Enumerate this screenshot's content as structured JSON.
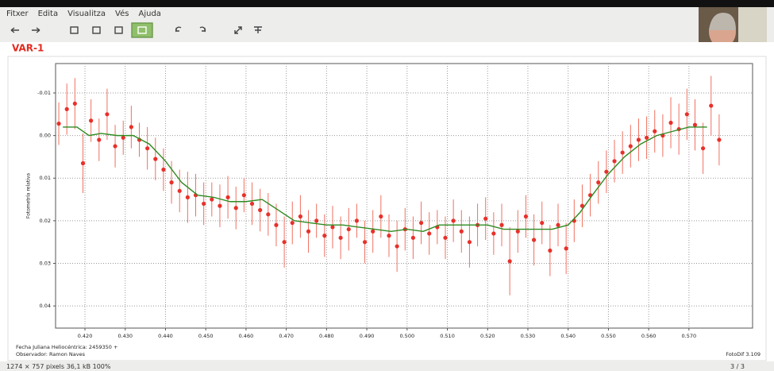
{
  "menu": [
    "Fitxer",
    "Edita",
    "Visualitza",
    "Vés",
    "Ajuda"
  ],
  "status": {
    "info": "1274 × 757 pixels  36,1 kB  100%",
    "page": "3 / 3"
  },
  "chart_data": {
    "type": "scatter",
    "title": "VAR-1",
    "xlabel": "Fecha Juliana Heliocéntrica: 2459350 +",
    "ylabel": "Fotometría relativa",
    "annotations": [
      "Observador: Ramon Naves",
      "FotoDif 3.109"
    ],
    "xlim": [
      0.4127,
      0.5858
    ],
    "ylim": [
      0.0452,
      -0.0169
    ],
    "grid": true,
    "xticks": [
      {
        "value": 0.42,
        "label": "0.420"
      },
      {
        "value": 0.43,
        "label": "0.430"
      },
      {
        "value": 0.44,
        "label": "0.440"
      },
      {
        "value": 0.45,
        "label": "0.450"
      },
      {
        "value": 0.46,
        "label": "0.460"
      },
      {
        "value": 0.47,
        "label": "0.470"
      },
      {
        "value": 0.48,
        "label": "0.480"
      },
      {
        "value": 0.49,
        "label": "0.490"
      },
      {
        "value": 0.5,
        "label": "0.500"
      },
      {
        "value": 0.51,
        "label": "0.510"
      },
      {
        "value": 0.52,
        "label": "0.520"
      },
      {
        "value": 0.53,
        "label": "0.530"
      },
      {
        "value": 0.54,
        "label": "0.540"
      },
      {
        "value": 0.55,
        "label": "0.550"
      },
      {
        "value": 0.56,
        "label": "0.560"
      },
      {
        "value": 0.57,
        "label": "0.570"
      }
    ],
    "yticks": [
      -0.01,
      {
        "value": 0,
        "label": "0.00"
      },
      0.01,
      0.02,
      0.03,
      0.04
    ],
    "series": [
      {
        "mode": "errorbar",
        "color": "#e8302a",
        "error_color": "#f07060",
        "x": [
          0.4135,
          0.4155,
          0.4175,
          0.4195,
          0.4215,
          0.4235,
          0.4255,
          0.4275,
          0.4295,
          0.4315,
          0.4335,
          0.4355,
          0.4375,
          0.4395,
          0.4415,
          0.4435,
          0.4455,
          0.4475,
          0.4495,
          0.4515,
          0.4535,
          0.4555,
          0.4575,
          0.4595,
          0.4615,
          0.4635,
          0.4655,
          0.4675,
          0.4695,
          0.4715,
          0.4735,
          0.4755,
          0.4775,
          0.4795,
          0.4815,
          0.4835,
          0.4855,
          0.4875,
          0.4895,
          0.4915,
          0.4935,
          0.4955,
          0.4975,
          0.4995,
          0.5015,
          0.5035,
          0.5055,
          0.5075,
          0.5095,
          0.5115,
          0.5135,
          0.5155,
          0.5175,
          0.5195,
          0.5215,
          0.5235,
          0.5255,
          0.5275,
          0.5295,
          0.5315,
          0.5335,
          0.5355,
          0.5375,
          0.5395,
          0.5415,
          0.5435,
          0.5455,
          0.5475,
          0.5495,
          0.5515,
          0.5535,
          0.5555,
          0.5575,
          0.5595,
          0.5615,
          0.5635,
          0.5655,
          0.5675,
          0.5695,
          0.5715,
          0.5735,
          0.5755,
          0.5775
        ],
        "values": [
          -0.0028,
          -0.0062,
          -0.0075,
          0.0065,
          -0.0035,
          0.001,
          -0.005,
          0.0025,
          0.0005,
          -0.002,
          0.001,
          0.003,
          0.0055,
          0.008,
          0.011,
          0.013,
          0.0145,
          0.014,
          0.016,
          0.015,
          0.0165,
          0.0145,
          0.017,
          0.014,
          0.016,
          0.0175,
          0.0185,
          0.021,
          0.025,
          0.0205,
          0.019,
          0.0225,
          0.02,
          0.0235,
          0.0215,
          0.024,
          0.022,
          0.02,
          0.025,
          0.0225,
          0.019,
          0.0235,
          0.026,
          0.022,
          0.024,
          0.0205,
          0.023,
          0.0215,
          0.024,
          0.02,
          0.0225,
          0.025,
          0.021,
          0.0195,
          0.023,
          0.021,
          0.0295,
          0.0225,
          0.019,
          0.0245,
          0.0205,
          0.027,
          0.021,
          0.0265,
          0.02,
          0.0165,
          0.014,
          0.011,
          0.0085,
          0.006,
          0.004,
          0.0025,
          0.001,
          0.0005,
          -0.001,
          0,
          -0.003,
          -0.0015,
          -0.005,
          -0.0025,
          0.003,
          -0.007,
          0.001
        ],
        "errors": [
          0.005,
          0.006,
          0.006,
          0.007,
          0.005,
          0.005,
          0.006,
          0.005,
          0.004,
          0.005,
          0.004,
          0.005,
          0.005,
          0.005,
          0.005,
          0.005,
          0.006,
          0.005,
          0.005,
          0.004,
          0.005,
          0.005,
          0.005,
          0.004,
          0.005,
          0.005,
          0.005,
          0.005,
          0.006,
          0.005,
          0.005,
          0.005,
          0.004,
          0.005,
          0.005,
          0.005,
          0.005,
          0.004,
          0.005,
          0.005,
          0.005,
          0.005,
          0.006,
          0.005,
          0.005,
          0.005,
          0.005,
          0.004,
          0.005,
          0.005,
          0.005,
          0.006,
          0.005,
          0.005,
          0.005,
          0.005,
          0.008,
          0.005,
          0.005,
          0.006,
          0.005,
          0.006,
          0.005,
          0.006,
          0.005,
          0.005,
          0.005,
          0.005,
          0.005,
          0.005,
          0.005,
          0.005,
          0.005,
          0.005,
          0.005,
          0.005,
          0.006,
          0.006,
          0.006,
          0.006,
          0.006,
          0.007,
          0.006
        ]
      },
      {
        "mode": "line",
        "color": "#2e8b22",
        "x": [
          0.4145,
          0.418,
          0.421,
          0.424,
          0.428,
          0.432,
          0.436,
          0.44,
          0.444,
          0.448,
          0.452,
          0.456,
          0.46,
          0.464,
          0.468,
          0.472,
          0.476,
          0.48,
          0.484,
          0.488,
          0.492,
          0.496,
          0.5,
          0.504,
          0.508,
          0.512,
          0.516,
          0.52,
          0.524,
          0.528,
          0.532,
          0.536,
          0.54,
          0.543,
          0.546,
          0.55,
          0.554,
          0.558,
          0.562,
          0.566,
          0.57,
          0.5745
        ],
        "values": [
          -0.002,
          -0.002,
          0,
          -0.0005,
          0,
          0,
          0.002,
          0.006,
          0.011,
          0.014,
          0.0145,
          0.0155,
          0.0155,
          0.015,
          0.0175,
          0.02,
          0.0205,
          0.021,
          0.021,
          0.0215,
          0.022,
          0.0225,
          0.022,
          0.0225,
          0.021,
          0.021,
          0.021,
          0.021,
          0.022,
          0.022,
          0.022,
          0.022,
          0.021,
          0.018,
          0.014,
          0.009,
          0.005,
          0.002,
          0,
          -0.001,
          -0.002,
          -0.002
        ]
      }
    ]
  }
}
